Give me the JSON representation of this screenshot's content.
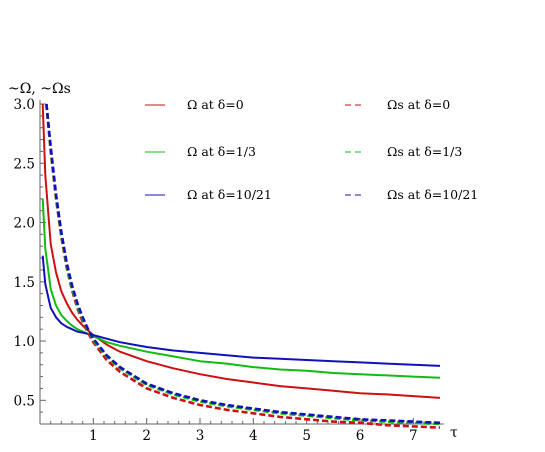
{
  "chart_data": {
    "type": "line",
    "ylabel": "~Ω,  ~Ωs",
    "xlabel": "τ",
    "xlim": [
      0,
      7.5
    ],
    "ylim": [
      0.3,
      3.0
    ],
    "xticks": [
      "1",
      "2",
      "3",
      "4",
      "5",
      "6",
      "7"
    ],
    "yticks": [
      "0.5",
      "1.0",
      "1.5",
      "2.0",
      "2.5",
      "3.0"
    ],
    "grid": false,
    "legend": "top",
    "colors": {
      "red": "#cc1111",
      "green": "#11bb11",
      "blue": "#1111bb"
    },
    "series": [
      {
        "name": "Ω  at  δ=0",
        "color": "#cc1111",
        "dash": false,
        "x": [
          0.05,
          0.1,
          0.2,
          0.3,
          0.4,
          0.5,
          0.6,
          0.7,
          0.8,
          0.9,
          1.0,
          1.25,
          1.5,
          2,
          2.5,
          3,
          3.5,
          4,
          4.5,
          5,
          5.5,
          6,
          6.5,
          7,
          7.5
        ],
        "y": [
          3.0,
          2.4,
          1.82,
          1.58,
          1.42,
          1.32,
          1.24,
          1.18,
          1.13,
          1.09,
          1.05,
          0.97,
          0.91,
          0.83,
          0.77,
          0.72,
          0.68,
          0.65,
          0.62,
          0.6,
          0.58,
          0.56,
          0.55,
          0.535,
          0.52
        ]
      },
      {
        "name": "Ω  at  δ=1/3",
        "color": "#11bb11",
        "dash": false,
        "x": [
          0.05,
          0.1,
          0.2,
          0.3,
          0.4,
          0.5,
          0.6,
          0.7,
          0.8,
          0.9,
          1.0,
          1.25,
          1.5,
          2,
          2.5,
          3,
          3.5,
          4,
          4.5,
          5,
          5.5,
          6,
          6.5,
          7,
          7.5
        ],
        "y": [
          2.2,
          1.78,
          1.44,
          1.3,
          1.22,
          1.17,
          1.13,
          1.1,
          1.08,
          1.06,
          1.04,
          0.99,
          0.96,
          0.91,
          0.87,
          0.83,
          0.81,
          0.78,
          0.76,
          0.75,
          0.73,
          0.72,
          0.71,
          0.7,
          0.69
        ]
      },
      {
        "name": "Ω  at  δ=10/21",
        "color": "#1111bb",
        "dash": false,
        "x": [
          0.05,
          0.1,
          0.2,
          0.3,
          0.4,
          0.5,
          0.6,
          0.7,
          0.8,
          0.9,
          1.0,
          1.25,
          1.5,
          2,
          2.5,
          3,
          3.5,
          4,
          4.5,
          5,
          5.5,
          6,
          6.5,
          7,
          7.5
        ],
        "y": [
          1.72,
          1.48,
          1.28,
          1.2,
          1.15,
          1.12,
          1.1,
          1.08,
          1.07,
          1.06,
          1.05,
          1.02,
          0.99,
          0.95,
          0.92,
          0.9,
          0.88,
          0.86,
          0.85,
          0.84,
          0.83,
          0.82,
          0.81,
          0.8,
          0.79
        ]
      },
      {
        "name": "Ωs  at  δ=0",
        "color": "#cc1111",
        "dash": true,
        "x": [
          0.12,
          0.2,
          0.3,
          0.4,
          0.5,
          0.6,
          0.7,
          0.8,
          0.9,
          1.0,
          1.25,
          1.5,
          2,
          2.5,
          3,
          3.5,
          4,
          4.5,
          5,
          5.5,
          6,
          6.5,
          7,
          7.5
        ],
        "y": [
          3.0,
          2.6,
          2.2,
          1.88,
          1.62,
          1.43,
          1.28,
          1.16,
          1.07,
          0.99,
          0.84,
          0.74,
          0.6,
          0.52,
          0.46,
          0.42,
          0.39,
          0.36,
          0.34,
          0.32,
          0.31,
          0.29,
          0.28,
          0.27
        ]
      },
      {
        "name": "Ωs  at  δ=1/3",
        "color": "#11bb11",
        "dash": true,
        "x": [
          0.12,
          0.2,
          0.3,
          0.4,
          0.5,
          0.6,
          0.7,
          0.8,
          0.9,
          1.0,
          1.25,
          1.5,
          2,
          2.5,
          3,
          3.5,
          4,
          4.5,
          5,
          5.5,
          6,
          6.5,
          7,
          7.5
        ],
        "y": [
          3.0,
          2.62,
          2.22,
          1.9,
          1.64,
          1.45,
          1.3,
          1.18,
          1.09,
          1.01,
          0.87,
          0.77,
          0.63,
          0.55,
          0.49,
          0.45,
          0.42,
          0.39,
          0.37,
          0.35,
          0.33,
          0.32,
          0.31,
          0.3
        ]
      },
      {
        "name": "Ωs  at  δ=10/21",
        "color": "#1111bb",
        "dash": true,
        "x": [
          0.12,
          0.2,
          0.3,
          0.4,
          0.5,
          0.6,
          0.7,
          0.8,
          0.9,
          1.0,
          1.25,
          1.5,
          2,
          2.5,
          3,
          3.5,
          4,
          4.5,
          5,
          5.5,
          6,
          6.5,
          7,
          7.5
        ],
        "y": [
          3.0,
          2.64,
          2.24,
          1.92,
          1.66,
          1.47,
          1.32,
          1.2,
          1.1,
          1.02,
          0.88,
          0.78,
          0.64,
          0.56,
          0.5,
          0.46,
          0.43,
          0.4,
          0.38,
          0.36,
          0.34,
          0.33,
          0.32,
          0.31
        ]
      }
    ]
  }
}
